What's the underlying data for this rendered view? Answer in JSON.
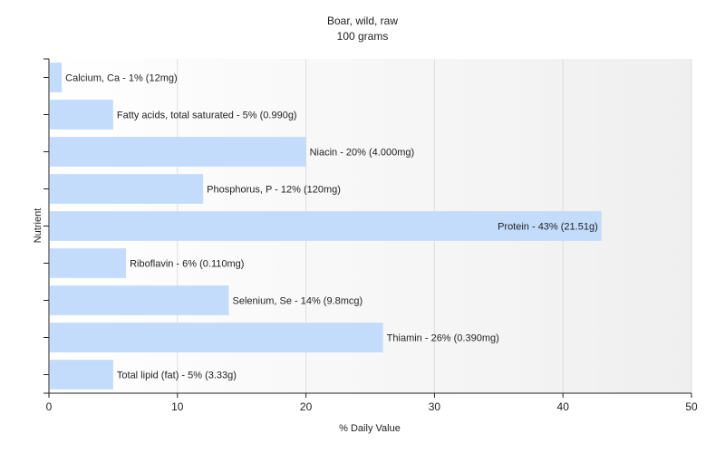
{
  "chart_data": {
    "type": "bar",
    "orientation": "horizontal",
    "title": "Boar, wild, raw",
    "subtitle": "100 grams",
    "xlabel": "% Daily Value",
    "ylabel": "Nutrient",
    "xlim": [
      0,
      50
    ],
    "xticks": [
      0,
      10,
      20,
      30,
      40,
      50
    ],
    "grid": true,
    "bar_color": "#c4dcfb",
    "categories": [
      "Calcium, Ca",
      "Fatty acids, total saturated",
      "Niacin",
      "Phosphorus, P",
      "Protein",
      "Riboflavin",
      "Selenium, Se",
      "Thiamin",
      "Total lipid (fat)"
    ],
    "values": [
      1,
      5,
      20,
      12,
      43,
      6,
      14,
      26,
      5
    ],
    "labels": [
      "Calcium, Ca - 1% (12mg)",
      "Fatty acids, total saturated - 5% (0.990g)",
      "Niacin - 20% (4.000mg)",
      "Phosphorus, P - 12% (120mg)",
      "Protein - 43% (21.51g)",
      "Riboflavin - 6% (0.110mg)",
      "Selenium, Se - 14% (9.8mcg)",
      "Thiamin - 26% (0.390mg)",
      "Total lipid (fat) - 5% (3.33g)"
    ]
  }
}
